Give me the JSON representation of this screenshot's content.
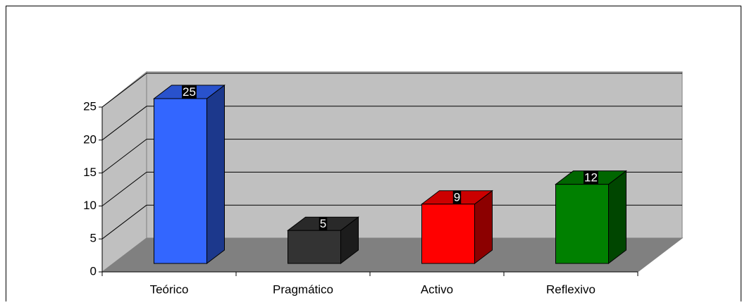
{
  "chart_data": {
    "type": "bar3d",
    "categories": [
      "Teórico",
      "Pragmático",
      "Activo",
      "Reflexivo"
    ],
    "values": [
      25,
      5,
      9,
      12
    ],
    "colors": [
      "#3366ff",
      "#333333",
      "#ff0000",
      "#008000"
    ],
    "ylim": [
      0,
      25
    ],
    "yticks": [
      0,
      5,
      10,
      15,
      20,
      25
    ],
    "grid": true
  }
}
